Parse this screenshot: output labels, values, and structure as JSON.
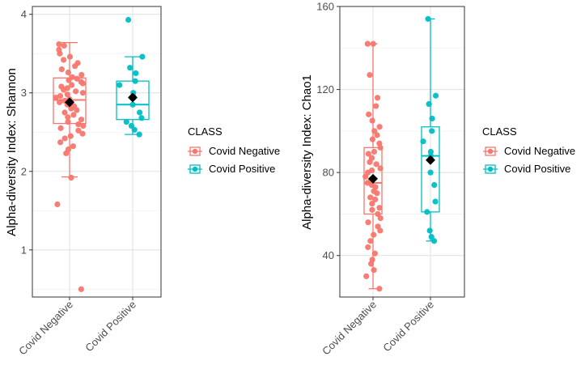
{
  "chart_data": [
    {
      "type": "boxplot",
      "ylabel": "Alpha-diversity Index: Shannon",
      "xlabel": "",
      "categories": [
        "Covid Negative",
        "Covid Positive"
      ],
      "ylim": [
        0.4,
        4.1
      ],
      "yticks": [
        1,
        2,
        3,
        4
      ],
      "grid": true,
      "legend": {
        "title": "CLASS",
        "entries": [
          "Covid Negative",
          "Covid Positive"
        ],
        "placement": "right"
      },
      "boxes": [
        {
          "name": "Covid Negative",
          "color": "#F8766D",
          "whisker_low": 1.93,
          "q1": 2.61,
          "median": 2.91,
          "q3": 3.19,
          "whisker_high": 3.64,
          "mean": 2.88,
          "points": [
            0.5,
            1.58,
            1.92,
            2.23,
            2.28,
            2.32,
            2.37,
            2.42,
            2.45,
            2.48,
            2.52,
            2.55,
            2.58,
            2.6,
            2.63,
            2.66,
            2.69,
            2.72,
            2.75,
            2.78,
            2.8,
            2.83,
            2.85,
            2.88,
            2.9,
            2.92,
            2.94,
            2.96,
            2.98,
            3.0,
            3.02,
            3.04,
            3.06,
            3.08,
            3.1,
            3.12,
            3.14,
            3.16,
            3.18,
            3.2,
            3.23,
            3.26,
            3.3,
            3.34,
            3.38,
            3.42,
            3.46,
            3.5,
            3.55,
            3.6,
            3.62
          ]
        },
        {
          "name": "Covid Positive",
          "color": "#00BFC4",
          "whisker_low": 2.47,
          "q1": 2.66,
          "median": 2.85,
          "q3": 3.15,
          "whisker_high": 3.46,
          "mean": 2.94,
          "points": [
            2.47,
            2.53,
            2.58,
            2.63,
            2.68,
            2.75,
            2.85,
            2.95,
            3.0,
            3.1,
            3.15,
            3.25,
            3.32,
            3.46,
            3.93
          ]
        }
      ]
    },
    {
      "type": "boxplot",
      "ylabel": "Alpha-diversity Index: Chao1",
      "xlabel": "",
      "categories": [
        "Covid Negative",
        "Covid Positive"
      ],
      "ylim": [
        20,
        160
      ],
      "yticks": [
        40,
        80,
        120,
        160
      ],
      "grid": true,
      "legend": {
        "title": "CLASS",
        "entries": [
          "Covid Negative",
          "Covid Positive"
        ],
        "placement": "right"
      },
      "boxes": [
        {
          "name": "Covid Negative",
          "color": "#F8766D",
          "whisker_low": 24,
          "q1": 60,
          "median": 75,
          "q3": 92,
          "whisker_high": 142,
          "mean": 77,
          "points": [
            24,
            30,
            33,
            36,
            38,
            41,
            44,
            47,
            50,
            52,
            54,
            56,
            58,
            60,
            62,
            63,
            65,
            67,
            68,
            70,
            71,
            73,
            74,
            75,
            76,
            77,
            78,
            80,
            81,
            82,
            84,
            85,
            87,
            89,
            90,
            92,
            94,
            96,
            98,
            100,
            102,
            105,
            108,
            112,
            116,
            127,
            142,
            142
          ]
        },
        {
          "name": "Covid Positive",
          "color": "#00BFC4",
          "whisker_low": 47,
          "q1": 61,
          "median": 88,
          "q3": 102,
          "whisker_high": 154,
          "mean": 86,
          "points": [
            47,
            49,
            52,
            61,
            66,
            74,
            80,
            88,
            90,
            95,
            100,
            106,
            113,
            117,
            154
          ]
        }
      ]
    }
  ]
}
